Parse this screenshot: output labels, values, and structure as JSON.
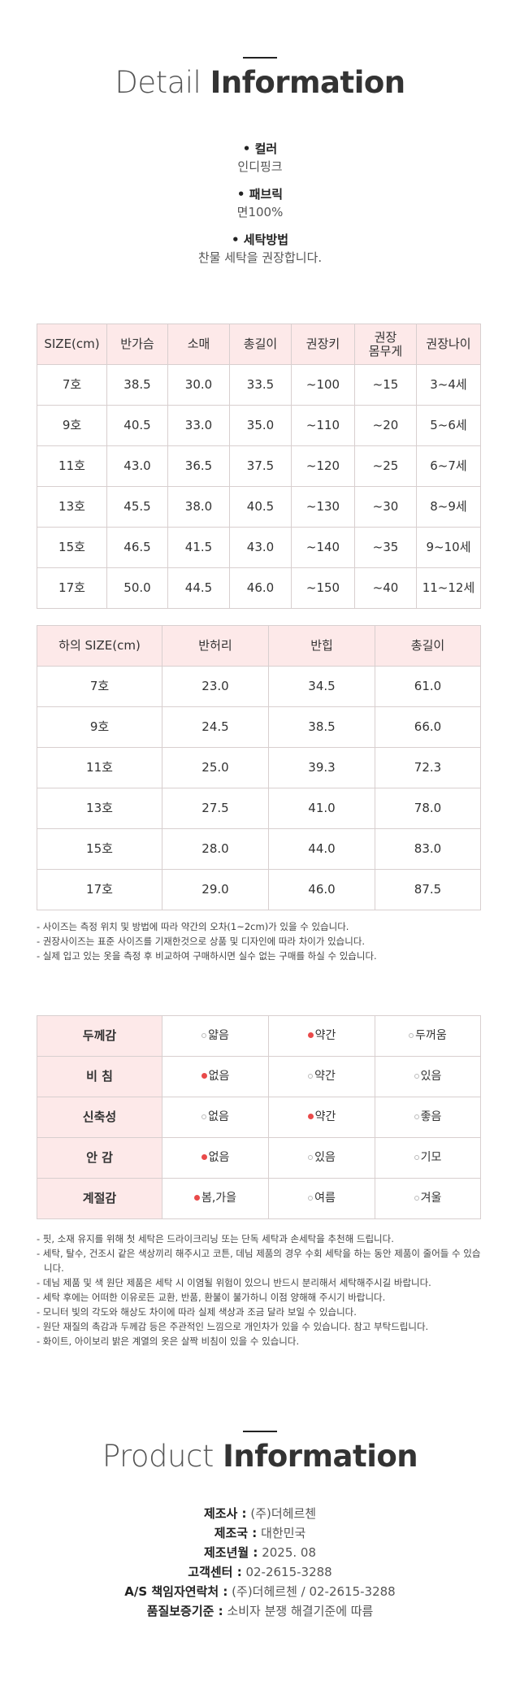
{
  "detail": {
    "title_light": "Detail",
    "title_bold": "Information",
    "specs": [
      {
        "label": "• 컬러",
        "value": "인디핑크"
      },
      {
        "label": "• 패브릭",
        "value": "면100%"
      },
      {
        "label": "• 세탁방법",
        "value": "찬물 세탁을 권장합니다."
      }
    ]
  },
  "top_size_table": {
    "header": [
      "SIZE(cm)",
      "반가슴",
      "소매",
      "총길이",
      "권장키",
      "권장\n몸무게",
      "권장나이"
    ],
    "rows": [
      [
        "7호",
        "38.5",
        "30.0",
        "33.5",
        "~100",
        "~15",
        "3~4세"
      ],
      [
        "9호",
        "40.5",
        "33.0",
        "35.0",
        "~110",
        "~20",
        "5~6세"
      ],
      [
        "11호",
        "43.0",
        "36.5",
        "37.5",
        "~120",
        "~25",
        "6~7세"
      ],
      [
        "13호",
        "45.5",
        "38.0",
        "40.5",
        "~130",
        "~30",
        "8~9세"
      ],
      [
        "15호",
        "46.5",
        "41.5",
        "43.0",
        "~140",
        "~35",
        "9~10세"
      ],
      [
        "17호",
        "50.0",
        "44.5",
        "46.0",
        "~150",
        "~40",
        "11~12세"
      ]
    ]
  },
  "bottom_size_table": {
    "header": [
      "하의 SIZE(cm)",
      "반허리",
      "반힙",
      "총길이"
    ],
    "rows": [
      [
        "7호",
        "23.0",
        "34.5",
        "61.0"
      ],
      [
        "9호",
        "24.5",
        "38.5",
        "66.0"
      ],
      [
        "11호",
        "25.0",
        "39.3",
        "72.3"
      ],
      [
        "13호",
        "27.5",
        "41.0",
        "78.0"
      ],
      [
        "15호",
        "28.0",
        "44.0",
        "83.0"
      ],
      [
        "17호",
        "29.0",
        "46.0",
        "87.5"
      ]
    ]
  },
  "size_notes": [
    "- 사이즈는 측정 위치 및 방법에 따라 약간의 오차(1~2cm)가 있을 수 있습니다.",
    "- 권장사이즈는 표준 사이즈를 기재한것으로 상품 및 디자인에 따라 차이가 있습니다.",
    "- 실제 입고 있는 옷을 측정 후 비교하여 구매하시면 실수 없는 구매를 하실 수 있습니다."
  ],
  "feel_table": {
    "rows": [
      {
        "label": "두께감",
        "options": [
          "얇음",
          "약간",
          "두꺼움"
        ],
        "selected": 1
      },
      {
        "label": "비 침",
        "options": [
          "없음",
          "약간",
          "있음"
        ],
        "selected": 0
      },
      {
        "label": "신축성",
        "options": [
          "없음",
          "약간",
          "좋음"
        ],
        "selected": 1
      },
      {
        "label": "안 감",
        "options": [
          "없음",
          "있음",
          "기모"
        ],
        "selected": 0
      },
      {
        "label": "계절감",
        "options": [
          "봄,가을",
          "여름",
          "겨울"
        ],
        "selected": 0
      }
    ]
  },
  "care_notes": [
    "- 핏, 소재 유지를 위해 첫 세탁은 드라이크리닝 또는 단독 세탁과 손세탁을 추천해 드립니다.",
    "- 세탁, 탈수, 건조시 같은 색상끼리 해주시고 코튼, 데님 제품의 경우 수회 세탁을 하는 동안 제품이 줄어들 수 있습니다.",
    "- 데님 제품 및 색 원단 제품은 세탁 시 이염될 위험이 있으니 반드시 분리해서 세탁해주시길 바랍니다.",
    "- 세탁 후에는 어떠한 이유로든 교환, 반품, 환불이 불가하니 이점 양해해 주시기 바랍니다.",
    "- 모니터 빛의 각도와 해상도 차이에 따라 실제 색상과 조금 달라 보일 수 있습니다.",
    "- 원단 재질의 촉감과 두께감 등은 주관적인 느낌으로 개인차가 있을 수 있습니다. 참고 부탁드립니다.",
    "- 화이트, 아이보리 밝은 계열의 옷은 살짝 비침이 있을 수 있습니다."
  ],
  "product": {
    "title_light": "Product",
    "title_bold": "Information",
    "rows": [
      {
        "label": "제조사 :",
        "value": "(주)더헤르첸"
      },
      {
        "label": "제조국 :",
        "value": "대한민국"
      },
      {
        "label": "제조년월 :",
        "value": "2025. 08"
      },
      {
        "label": "고객센터 :",
        "value": "02-2615-3288"
      },
      {
        "label": "A/S 책임자연락처 :",
        "value": "(주)더헤르첸 / 02-2615-3288"
      },
      {
        "label": "품질보증기준 :",
        "value": "소비자 분쟁 해결기준에 따름"
      }
    ]
  }
}
